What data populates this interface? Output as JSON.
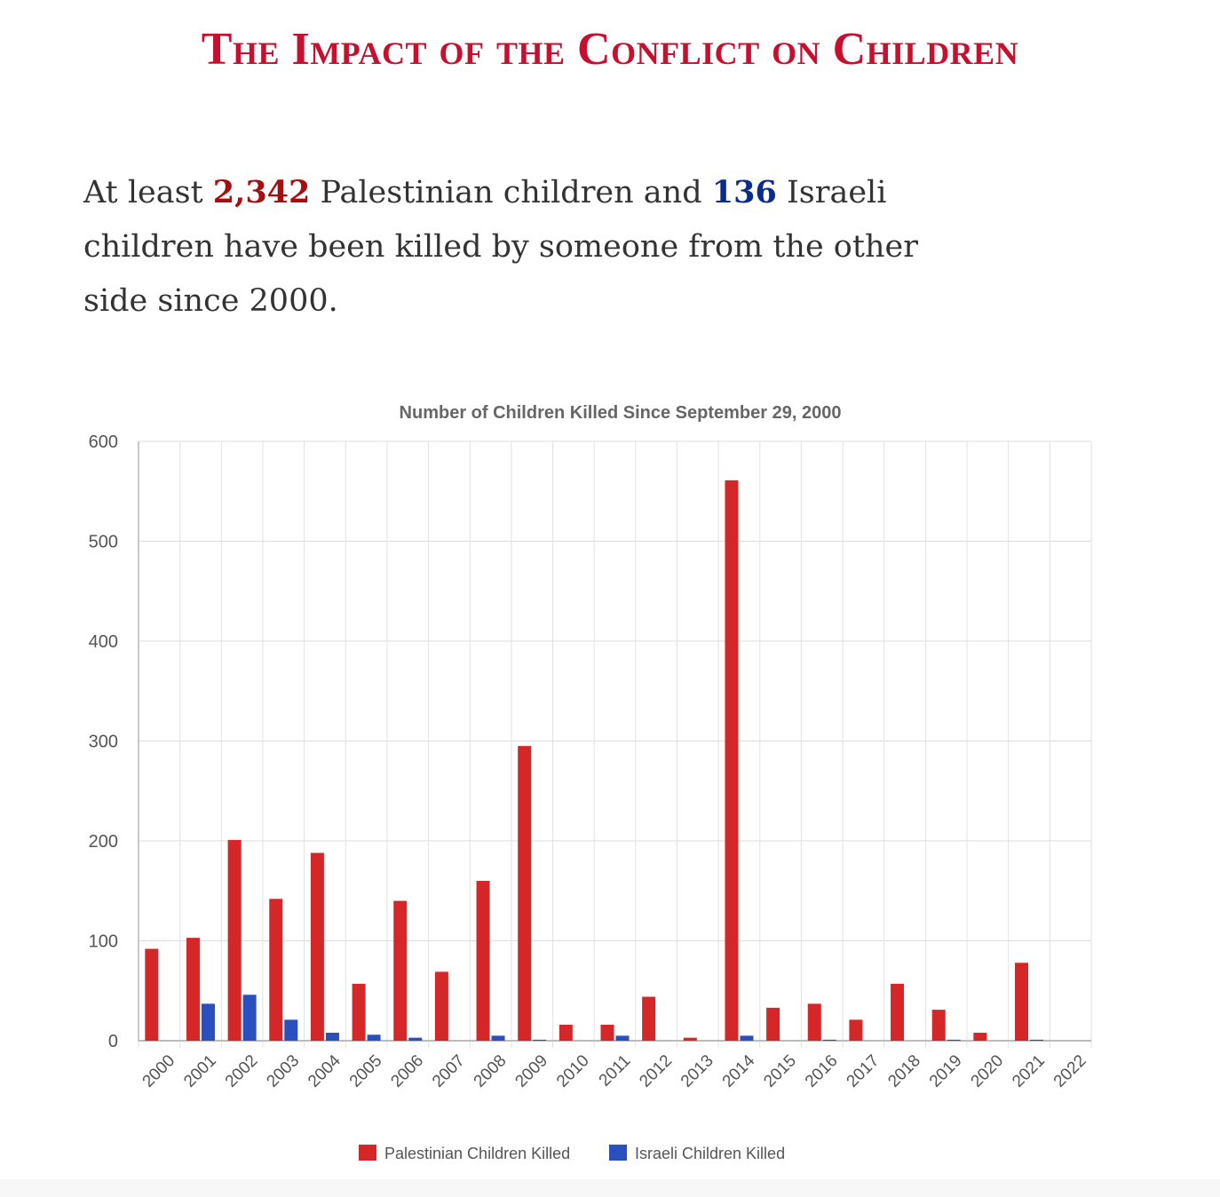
{
  "header": {
    "title": "The Impact of the Conflict on Children"
  },
  "intro": {
    "part1": "At least ",
    "pal_count": "2,342",
    "part2": " Palestinian children and ",
    "isr_count": "136",
    "part3": " Israeli children have been killed by someone from the other side since 2000."
  },
  "colors": {
    "title": "#c8102e",
    "palestinian": "#d62728",
    "israeli": "#2a4fbf"
  },
  "chart_data": {
    "type": "bar",
    "title": "Number of Children Killed Since September 29, 2000",
    "xlabel": "",
    "ylabel": "",
    "ylim": [
      0,
      600
    ],
    "yticks": [
      0,
      100,
      200,
      300,
      400,
      500,
      600
    ],
    "grid": true,
    "legend_position": "bottom",
    "categories": [
      "2000",
      "2001",
      "2002",
      "2003",
      "2004",
      "2005",
      "2006",
      "2007",
      "2008",
      "2009",
      "2010",
      "2011",
      "2012",
      "2013",
      "2014",
      "2015",
      "2016",
      "2017",
      "2018",
      "2019",
      "2020",
      "2021",
      "2022"
    ],
    "series": [
      {
        "name": "Palestinian Children Killed",
        "color": "#d62728",
        "values": [
          92,
          103,
          201,
          142,
          188,
          57,
          140,
          69,
          160,
          295,
          16,
          16,
          44,
          3,
          561,
          33,
          37,
          21,
          57,
          31,
          8,
          78,
          0
        ]
      },
      {
        "name": "Israeli Children Killed",
        "color": "#2a4fbf",
        "values": [
          0,
          37,
          46,
          21,
          8,
          6,
          3,
          0,
          5,
          1,
          0,
          5,
          0,
          0,
          5,
          0,
          1,
          0,
          0,
          1,
          0,
          1,
          0
        ]
      }
    ]
  }
}
